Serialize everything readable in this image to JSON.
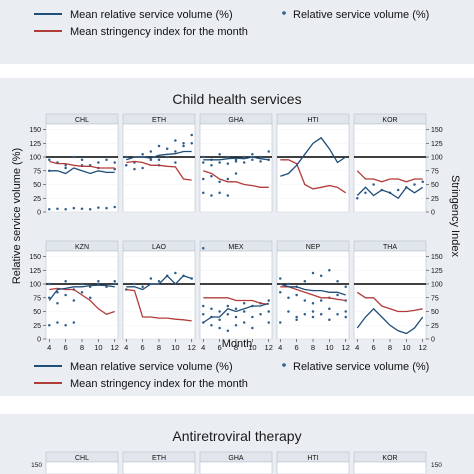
{
  "top_legend": {
    "mean_rel_label": "Mean relative service volume (%)",
    "rel_label": "Relative service volume (%)",
    "stringency_label": "Mean stringency index for the month"
  },
  "middle_legend": {
    "mean_rel_label": "Mean relative service volume (%)",
    "rel_label": "Relative service volume (%)",
    "stringency_label": "Mean stringency index for the month"
  },
  "colors": {
    "background": "#eaeef2",
    "mean_relative_line": "#1f4e79",
    "stringency_line": "#b23b3b",
    "points": "#2f5f8a",
    "reference_line": "#000000"
  },
  "chart_data": [
    {
      "title": "Child health services",
      "type": "line",
      "xlabel": "Month",
      "ylabel": "Relative service volume (%)",
      "y2label": "Stringency Index",
      "x": [
        4,
        5,
        6,
        7,
        8,
        9,
        10,
        11,
        12
      ],
      "x_ticks": [
        4,
        6,
        8,
        10,
        12
      ],
      "ylim": [
        0,
        160
      ],
      "y_ticks": [
        0,
        25,
        50,
        75,
        100,
        125,
        150
      ],
      "reference_line": 100,
      "grid": true,
      "panels": [
        {
          "label": "CHL",
          "mean_relative": [
            75,
            75,
            70,
            80,
            75,
            70,
            75,
            72,
            72
          ],
          "stringency": [
            92,
            88,
            88,
            85,
            83,
            83,
            80,
            80,
            80
          ],
          "points": [
            [
              4,
              95
            ],
            [
              5,
              90
            ],
            [
              6,
              85
            ],
            [
              7,
              100
            ],
            [
              8,
              95
            ],
            [
              9,
              85
            ],
            [
              10,
              90
            ],
            [
              11,
              95
            ],
            [
              12,
              90
            ],
            [
              4,
              75
            ],
            [
              6,
              80
            ],
            [
              8,
              85
            ],
            [
              10,
              80
            ],
            [
              12,
              78
            ],
            [
              4,
              5
            ],
            [
              5,
              6
            ],
            [
              6,
              5
            ],
            [
              7,
              7
            ],
            [
              8,
              6
            ],
            [
              9,
              5
            ],
            [
              10,
              8
            ],
            [
              11,
              7
            ],
            [
              12,
              9
            ]
          ]
        },
        {
          "label": "ETH",
          "mean_relative": [
            95,
            100,
            100,
            98,
            103,
            105,
            106,
            110,
            110
          ],
          "stringency": [
            90,
            92,
            90,
            85,
            85,
            83,
            82,
            60,
            58
          ],
          "points": [
            [
              4,
              85
            ],
            [
              5,
              90
            ],
            [
              6,
              80
            ],
            [
              7,
              95
            ],
            [
              8,
              120
            ],
            [
              9,
              100
            ],
            [
              10,
              130
            ],
            [
              11,
              125
            ],
            [
              12,
              140
            ],
            [
              4,
              100
            ],
            [
              6,
              105
            ],
            [
              7,
              110
            ],
            [
              8,
              95
            ],
            [
              9,
              115
            ],
            [
              10,
              110
            ],
            [
              11,
              120
            ],
            [
              12,
              125
            ],
            [
              5,
              78
            ],
            [
              8,
              85
            ],
            [
              10,
              90
            ]
          ]
        },
        {
          "label": "GHA",
          "mean_relative": [
            95,
            95,
            95,
            97,
            98,
            97,
            100,
            97,
            95
          ],
          "stringency": [
            75,
            70,
            60,
            55,
            55,
            50,
            48,
            45,
            45
          ],
          "points": [
            [
              4,
              35
            ],
            [
              5,
              30
            ],
            [
              6,
              35
            ],
            [
              7,
              30
            ],
            [
              4,
              60
            ],
            [
              5,
              65
            ],
            [
              6,
              55
            ],
            [
              7,
              60
            ],
            [
              8,
              70
            ],
            [
              4,
              100
            ],
            [
              5,
              95
            ],
            [
              6,
              105
            ],
            [
              7,
              100
            ],
            [
              8,
              95
            ],
            [
              9,
              100
            ],
            [
              10,
              105
            ],
            [
              11,
              100
            ],
            [
              12,
              110
            ],
            [
              4,
              90
            ],
            [
              5,
              85
            ],
            [
              6,
              90
            ],
            [
              7,
              88
            ],
            [
              8,
              92
            ],
            [
              9,
              90
            ],
            [
              10,
              95
            ],
            [
              11,
              92
            ],
            [
              12,
              95
            ]
          ]
        },
        {
          "label": "HTI",
          "mean_relative": [
            65,
            70,
            85,
            105,
            125,
            135,
            115,
            90,
            100
          ],
          "stringency": [
            95,
            95,
            88,
            50,
            42,
            45,
            48,
            45,
            35
          ],
          "points": []
        },
        {
          "label": "KOR",
          "mean_relative": [
            30,
            45,
            30,
            40,
            35,
            25,
            45,
            35,
            45
          ],
          "stringency": [
            75,
            60,
            60,
            55,
            60,
            60,
            55,
            60,
            60
          ],
          "points": [
            [
              4,
              25
            ],
            [
              5,
              35
            ],
            [
              6,
              50
            ],
            [
              7,
              40
            ],
            [
              8,
              35
            ],
            [
              9,
              40
            ],
            [
              10,
              45
            ],
            [
              11,
              50
            ],
            [
              12,
              55
            ]
          ]
        },
        {
          "label": "KZN",
          "mean_relative": [
            70,
            90,
            92,
            95,
            95,
            97,
            98,
            97,
            95
          ],
          "stringency": [
            90,
            92,
            90,
            90,
            80,
            70,
            55,
            45,
            50
          ],
          "points": [
            [
              4,
              25
            ],
            [
              5,
              30
            ],
            [
              6,
              25
            ],
            [
              7,
              30
            ],
            [
              4,
              75
            ],
            [
              5,
              85
            ],
            [
              6,
              80
            ],
            [
              7,
              90
            ],
            [
              8,
              85
            ],
            [
              9,
              95
            ],
            [
              10,
              100
            ],
            [
              11,
              95
            ],
            [
              12,
              100
            ],
            [
              4,
              100
            ],
            [
              6,
              105
            ],
            [
              8,
              100
            ],
            [
              10,
              105
            ],
            [
              12,
              105
            ],
            [
              5,
              65
            ],
            [
              7,
              70
            ],
            [
              9,
              75
            ]
          ]
        },
        {
          "label": "LAO",
          "mean_relative": [
            95,
            95,
            90,
            100,
            100,
            115,
            100,
            115,
            110
          ],
          "stringency": [
            90,
            88,
            40,
            40,
            38,
            38,
            36,
            35,
            33
          ],
          "points": [
            [
              4,
              90
            ],
            [
              5,
              100
            ],
            [
              6,
              95
            ],
            [
              7,
              110
            ],
            [
              8,
              105
            ],
            [
              9,
              115
            ],
            [
              10,
              120
            ],
            [
              11,
              115
            ],
            [
              12,
              110
            ]
          ]
        },
        {
          "label": "MEX",
          "mean_relative": [
            30,
            40,
            40,
            55,
            50,
            55,
            60,
            60,
            65
          ],
          "stringency": [
            75,
            75,
            75,
            75,
            70,
            70,
            70,
            65,
            63
          ],
          "points": [
            [
              4,
              165
            ],
            [
              4,
              60
            ],
            [
              4,
              45
            ],
            [
              4,
              30
            ],
            [
              5,
              55
            ],
            [
              5,
              40
            ],
            [
              5,
              25
            ],
            [
              6,
              50
            ],
            [
              6,
              35
            ],
            [
              6,
              20
            ],
            [
              7,
              60
            ],
            [
              7,
              45
            ],
            [
              7,
              15
            ],
            [
              8,
              55
            ],
            [
              8,
              40
            ],
            [
              8,
              25
            ],
            [
              9,
              65
            ],
            [
              9,
              50
            ],
            [
              9,
              30
            ],
            [
              10,
              60
            ],
            [
              10,
              40
            ],
            [
              10,
              20
            ],
            [
              11,
              65
            ],
            [
              11,
              45
            ],
            [
              12,
              70
            ],
            [
              12,
              50
            ],
            [
              12,
              30
            ]
          ]
        },
        {
          "label": "NEP",
          "mean_relative": [
            100,
            95,
            95,
            90,
            88,
            88,
            85,
            85,
            80
          ],
          "stringency": [
            95,
            95,
            90,
            85,
            80,
            75,
            75,
            72,
            70
          ],
          "points": [
            [
              4,
              110
            ],
            [
              5,
              100
            ],
            [
              6,
              95
            ],
            [
              7,
              105
            ],
            [
              8,
              120
            ],
            [
              9,
              115
            ],
            [
              10,
              125
            ],
            [
              11,
              105
            ],
            [
              12,
              95
            ],
            [
              4,
              85
            ],
            [
              5,
              75
            ],
            [
              6,
              80
            ],
            [
              7,
              70
            ],
            [
              8,
              65
            ],
            [
              9,
              70
            ],
            [
              10,
              75
            ],
            [
              11,
              80
            ],
            [
              12,
              70
            ],
            [
              5,
              50
            ],
            [
              6,
              40
            ],
            [
              7,
              45
            ],
            [
              8,
              50
            ],
            [
              9,
              45
            ],
            [
              10,
              55
            ],
            [
              11,
              45
            ],
            [
              12,
              50
            ],
            [
              4,
              30
            ],
            [
              6,
              35
            ],
            [
              8,
              40
            ],
            [
              10,
              35
            ],
            [
              12,
              40
            ]
          ]
        },
        {
          "label": "THA",
          "mean_relative": [
            20,
            40,
            55,
            40,
            25,
            15,
            10,
            20,
            40
          ],
          "stringency": [
            85,
            75,
            75,
            60,
            55,
            50,
            50,
            52,
            55
          ],
          "points": []
        }
      ]
    },
    {
      "title": "Antiretroviral therapy",
      "type": "line",
      "y_ticks": [
        150
      ],
      "panels": [
        {
          "label": "CHL"
        },
        {
          "label": "ETH"
        },
        {
          "label": "GHA"
        },
        {
          "label": "HTI"
        },
        {
          "label": "KOR"
        }
      ]
    }
  ]
}
